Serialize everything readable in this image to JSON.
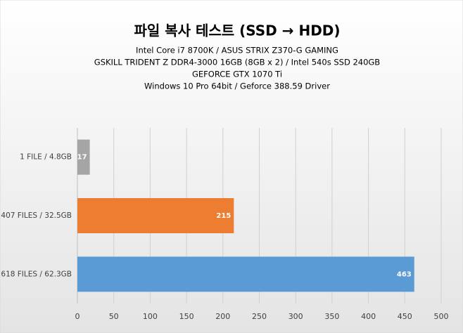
{
  "chart_data": {
    "type": "hbar",
    "title": "파일 복사 테스트 (SSD → HDD)",
    "subtitle": [
      "Intel Core i7 8700K  / ASUS STRIX Z370-G  GAMING",
      "GSKILL TRIDENT Z DDR4-3000  16GB (8GB x 2) / Intel 540s SSD 240GB",
      "GEFORCE GTX 1070 Ti",
      "Windows 10 Pro 64bit / Geforce 388.59 Driver"
    ],
    "categories": [
      "1 FILE / 4.8GB",
      "407 FILES / 32.5GB",
      "618 FILES / 62.3GB"
    ],
    "values": [
      17,
      215,
      463
    ],
    "colors": [
      "#a5a5a5",
      "#ed7d31",
      "#5b9bd5"
    ],
    "xlim": [
      0,
      500
    ],
    "xticks": [
      0,
      50,
      100,
      150,
      200,
      250,
      300,
      350,
      400,
      450,
      500
    ],
    "grid": true
  }
}
